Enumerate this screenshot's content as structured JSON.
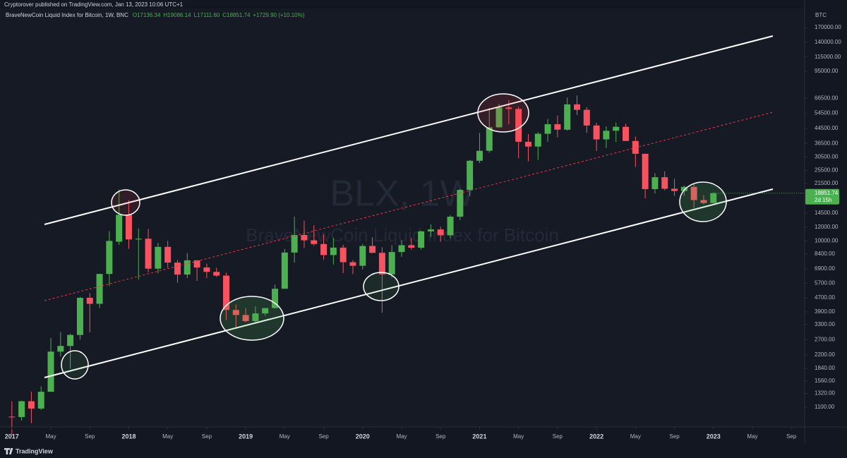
{
  "header": "Cryptorover published on TradingView.com, Jan 13, 2023 10:06 UTC+1",
  "footer": "TradingView",
  "chart_data": {
    "type": "candlestick",
    "title": "BraveNewCoin Liquid Index for Bitcoin, 1W, BNC",
    "legend_values": [
      "O17136.34",
      "H19086.14",
      "L17111.60",
      "C18851.74",
      "+1729.90 (+10.10%)"
    ],
    "watermark": [
      "BLX, 1W",
      "BraveNewCoin Liquid Index for Bitcoin"
    ],
    "y_unit": "BTC",
    "countdown": "2d 15h",
    "up_color": "#4caf50",
    "down_color": "#f7525f",
    "log_y": true,
    "grid": false,
    "x": [
      "2017-01",
      "2017-02",
      "2017-03",
      "2017-04",
      "2017-05",
      "2017-06",
      "2017-07",
      "2017-08",
      "2017-09",
      "2017-10",
      "2017-11",
      "2017-12",
      "2018-01",
      "2018-02",
      "2018-03",
      "2018-04",
      "2018-05",
      "2018-06",
      "2018-07",
      "2018-08",
      "2018-09",
      "2018-10",
      "2018-11",
      "2018-12",
      "2019-01",
      "2019-02",
      "2019-03",
      "2019-04",
      "2019-05",
      "2019-06",
      "2019-07",
      "2019-08",
      "2019-09",
      "2019-10",
      "2019-11",
      "2019-12",
      "2020-01",
      "2020-02",
      "2020-03",
      "2020-04",
      "2020-05",
      "2020-06",
      "2020-07",
      "2020-08",
      "2020-09",
      "2020-10",
      "2020-11",
      "2020-12",
      "2021-01",
      "2021-02",
      "2021-03",
      "2021-04",
      "2021-05",
      "2021-06",
      "2021-07",
      "2021-08",
      "2021-09",
      "2021-10",
      "2021-11",
      "2021-12",
      "2022-01",
      "2022-02",
      "2022-03",
      "2022-04",
      "2022-05",
      "2022-06",
      "2022-07",
      "2022-08",
      "2022-09",
      "2022-10",
      "2022-11",
      "2022-12",
      "2023-01"
    ],
    "open": [
      970,
      965,
      1190,
      1080,
      1350,
      2300,
      2480,
      2870,
      4700,
      4340,
      6450,
      9900,
      14150,
      10200,
      10300,
      6920,
      9240,
      7500,
      6400,
      7730,
      7030,
      6630,
      6310,
      4000,
      3740,
      3450,
      3820,
      4100,
      5300,
      8570,
      10820,
      10080,
      9600,
      8290,
      9150,
      7540,
      7190,
      9350,
      8540,
      6410,
      8630,
      9450,
      9140,
      11350,
      11650,
      10780,
      13800,
      19700,
      28990,
      33100,
      45200,
      58800,
      57700,
      37300,
      35000,
      41500,
      47100,
      43800,
      61300,
      57000,
      46300,
      38500,
      43200,
      45500,
      37700,
      31800,
      19900,
      23300,
      20000,
      19400,
      20500,
      17200,
      16550
    ],
    "high": [
      1190,
      1200,
      1350,
      1450,
      2760,
      2980,
      2920,
      4760,
      5000,
      6470,
      11400,
      19800,
      17200,
      11800,
      11700,
      9750,
      10000,
      7750,
      8500,
      7760,
      7400,
      7000,
      6560,
      4300,
      4100,
      4200,
      4100,
      5600,
      9000,
      13800,
      13100,
      12300,
      10900,
      10400,
      9500,
      7750,
      9600,
      10500,
      9200,
      9460,
      10070,
      10400,
      11450,
      12470,
      12090,
      14100,
      19900,
      29300,
      41950,
      58330,
      61800,
      64860,
      59500,
      41300,
      42400,
      50500,
      52900,
      67000,
      69000,
      59100,
      48000,
      45800,
      48200,
      47400,
      40000,
      31900,
      24600,
      25200,
      22800,
      20900,
      21400,
      18400,
      19086
    ],
    "low": [
      760,
      920,
      890,
      1060,
      1350,
      2150,
      1830,
      2700,
      2970,
      4110,
      5500,
      9500,
      9000,
      6000,
      6600,
      6500,
      7000,
      5750,
      6100,
      5880,
      6100,
      6200,
      3500,
      3150,
      3400,
      3380,
      3700,
      4080,
      5300,
      7500,
      9100,
      9400,
      7800,
      7300,
      6520,
      6430,
      6850,
      8500,
      3850,
      6150,
      8100,
      8900,
      8900,
      10530,
      9900,
      10400,
      13200,
      18100,
      28130,
      32300,
      44950,
      47050,
      30000,
      28800,
      29300,
      37400,
      39600,
      43300,
      53300,
      42000,
      33000,
      34300,
      37200,
      37600,
      26700,
      17600,
      18800,
      19600,
      18200,
      18200,
      15500,
      16300,
      16500
    ],
    "close": [
      965,
      1190,
      1080,
      1350,
      2300,
      2480,
      2870,
      4700,
      4340,
      6450,
      10000,
      14150,
      10200,
      10300,
      6920,
      9240,
      7500,
      6400,
      7730,
      7030,
      6630,
      6310,
      4000,
      3740,
      3450,
      3820,
      4100,
      5300,
      8570,
      10820,
      10080,
      9600,
      8290,
      9150,
      7540,
      7190,
      9350,
      8540,
      6410,
      8630,
      9450,
      9140,
      11350,
      11650,
      10780,
      13800,
      19700,
      28990,
      33100,
      45200,
      58800,
      57700,
      37300,
      35000,
      41500,
      47100,
      43800,
      61300,
      57000,
      46300,
      38500,
      43200,
      45500,
      37700,
      31800,
      19900,
      23300,
      20000,
      19400,
      20500,
      17200,
      16550,
      18851.74
    ],
    "xlim": [
      "2016-12",
      "2023-10"
    ],
    "xticks": [
      {
        "value": "2017-01",
        "label": "2017"
      },
      {
        "value": "2017-05",
        "label": "May"
      },
      {
        "value": "2017-09",
        "label": "Sep"
      },
      {
        "value": "2018-01",
        "label": "2018"
      },
      {
        "value": "2018-05",
        "label": "May"
      },
      {
        "value": "2018-09",
        "label": "Sep"
      },
      {
        "value": "2019-01",
        "label": "2019"
      },
      {
        "value": "2019-05",
        "label": "May"
      },
      {
        "value": "2019-09",
        "label": "Sep"
      },
      {
        "value": "2020-01",
        "label": "2020"
      },
      {
        "value": "2020-05",
        "label": "May"
      },
      {
        "value": "2020-09",
        "label": "Sep"
      },
      {
        "value": "2021-01",
        "label": "2021"
      },
      {
        "value": "2021-05",
        "label": "May"
      },
      {
        "value": "2021-09",
        "label": "Sep"
      },
      {
        "value": "2022-01",
        "label": "2022"
      },
      {
        "value": "2022-05",
        "label": "May"
      },
      {
        "value": "2022-09",
        "label": "Sep"
      },
      {
        "value": "2023-01",
        "label": "2023"
      },
      {
        "value": "2023-05",
        "label": "May"
      },
      {
        "value": "2023-09",
        "label": "Sep"
      }
    ],
    "ylim": [
      846,
      219000
    ],
    "yticks": [
      {
        "value": 1100,
        "label": "1100.00"
      },
      {
        "value": 1320,
        "label": "1320.00"
      },
      {
        "value": 1560,
        "label": "1560.00"
      },
      {
        "value": 1840,
        "label": "1840.00"
      },
      {
        "value": 2200,
        "label": "2200.00"
      },
      {
        "value": 2700,
        "label": "2700.00"
      },
      {
        "value": 3300,
        "label": "3300.00"
      },
      {
        "value": 3900,
        "label": "3900.00"
      },
      {
        "value": 4700,
        "label": "4700.00"
      },
      {
        "value": 5700,
        "label": "5700.00"
      },
      {
        "value": 6900,
        "label": "6900.00"
      },
      {
        "value": 8400,
        "label": "8400.00"
      },
      {
        "value": 10000,
        "label": "10000.00"
      },
      {
        "value": 12000,
        "label": "12000.00"
      },
      {
        "value": 14500,
        "label": "14500.00"
      },
      {
        "value": 21500,
        "label": "21500.00"
      },
      {
        "value": 25500,
        "label": "25500.00"
      },
      {
        "value": 30500,
        "label": "30500.00"
      },
      {
        "value": 36500,
        "label": "36500.00"
      },
      {
        "value": 44500,
        "label": "44500.00"
      },
      {
        "value": 54500,
        "label": "54500.00"
      },
      {
        "value": 66500,
        "label": "66500.00"
      },
      {
        "value": 95000,
        "label": "95000.00"
      },
      {
        "value": 115000,
        "label": "115000.00"
      },
      {
        "value": 140000,
        "label": "140000.00"
      },
      {
        "value": 170000,
        "label": "170000.00"
      }
    ]
  }
}
